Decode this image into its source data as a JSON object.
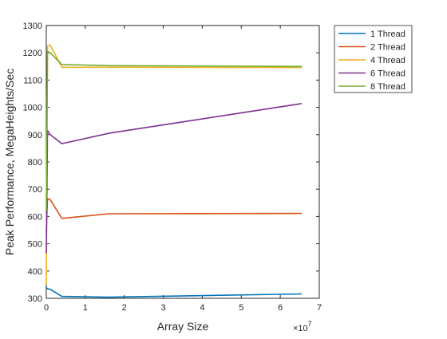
{
  "chart_data": {
    "type": "line",
    "title": "",
    "xlabel": "Array Size",
    "ylabel": "Peak Performance, MegaHeights/Sec",
    "x_exponent_label": "×10",
    "x_exponent_power": "7",
    "xlim": [
      0,
      7
    ],
    "ylim": [
      300,
      1300
    ],
    "x_ticks": [
      0,
      1,
      2,
      3,
      4,
      5,
      6,
      7
    ],
    "y_ticks": [
      300,
      400,
      500,
      600,
      700,
      800,
      900,
      1000,
      1100,
      1200,
      1300
    ],
    "x_units_note": "x values in units of 10^7",
    "legend_position": "outside-top-right",
    "grid": false,
    "series": [
      {
        "name": "1 Thread",
        "color": "#0072BD",
        "x": [
          0,
          0.03,
          0.1,
          0.4,
          1.6,
          6.55
        ],
        "y": [
          340,
          335,
          333,
          307,
          304,
          316
        ]
      },
      {
        "name": "2 Thread",
        "color": "#D95319",
        "x": [
          0,
          0.03,
          0.1,
          0.4,
          1.6,
          6.55
        ],
        "y": [
          540,
          665,
          662,
          593,
          610,
          611
        ]
      },
      {
        "name": "4 Thread",
        "color": "#EDB120",
        "x": [
          0,
          0.03,
          0.1,
          0.4,
          1.6,
          6.55
        ],
        "y": [
          350,
          1225,
          1228,
          1147,
          1147,
          1146
        ]
      },
      {
        "name": "6 Thread",
        "color": "#7E2F8E",
        "x": [
          0,
          0.03,
          0.1,
          0.4,
          1.6,
          6.55
        ],
        "y": [
          465,
          915,
          900,
          867,
          905,
          1014
        ]
      },
      {
        "name": "8 Thread",
        "color": "#77AC30",
        "x": [
          0,
          0.03,
          0.1,
          0.4,
          1.6,
          6.55
        ],
        "y": [
          620,
          1205,
          1200,
          1157,
          1153,
          1150
        ]
      }
    ]
  }
}
